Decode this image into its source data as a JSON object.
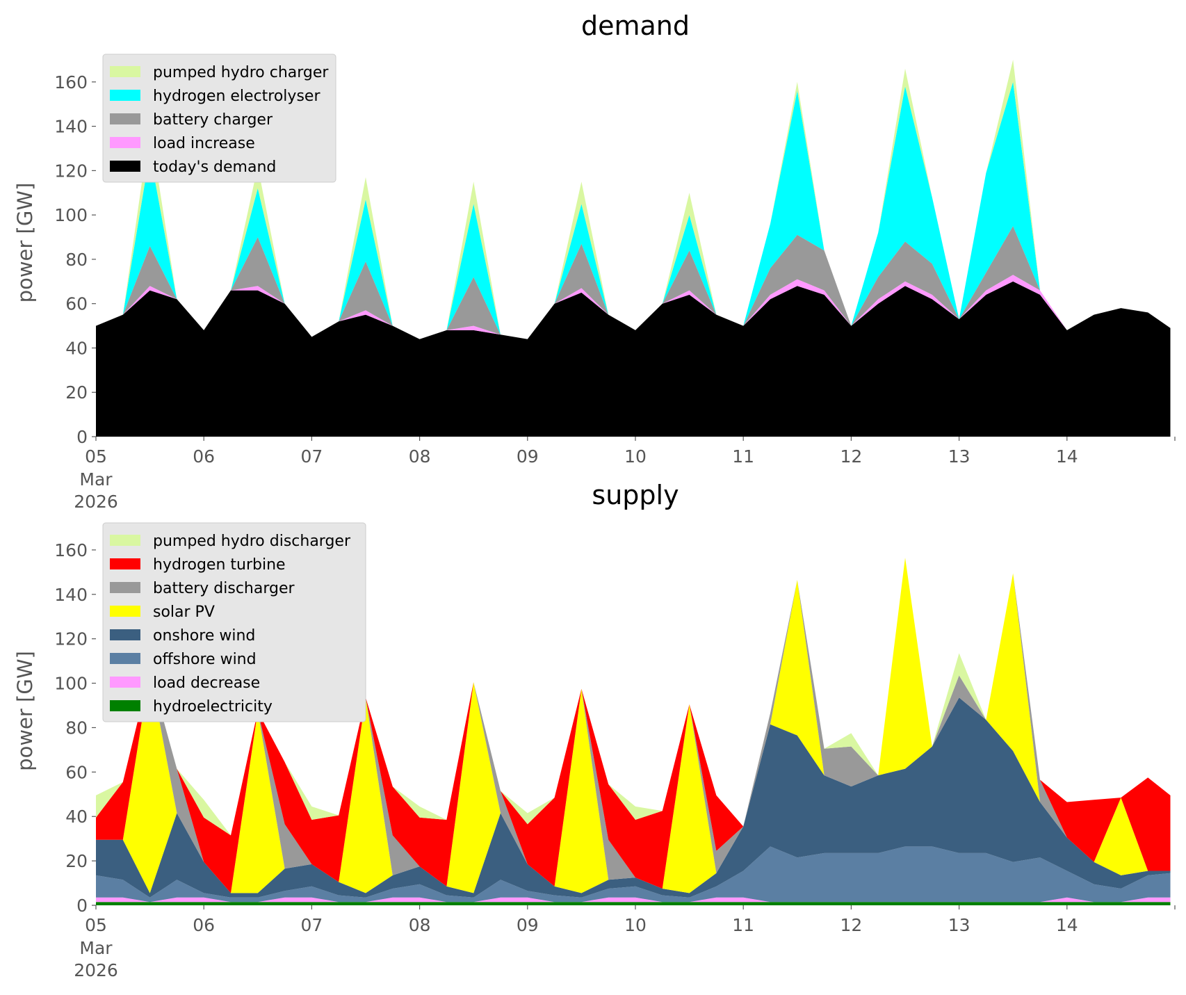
{
  "chart_data": [
    {
      "type": "area",
      "stacked": true,
      "title": "demand",
      "ylabel": "power [GW]",
      "xlabel": "",
      "ylim": [
        0,
        175
      ],
      "yticks": [
        0,
        20,
        40,
        60,
        80,
        100,
        120,
        140,
        160
      ],
      "grid": false,
      "legend_position": "top-left",
      "x_ticks": [
        {
          "label": "05",
          "sub": [
            "Mar",
            "2026"
          ]
        },
        {
          "label": "06"
        },
        {
          "label": "07"
        },
        {
          "label": "08"
        },
        {
          "label": "09"
        },
        {
          "label": "10"
        },
        {
          "label": "11"
        },
        {
          "label": "12"
        },
        {
          "label": "13"
        },
        {
          "label": "14"
        }
      ],
      "x": [
        "2026-03-05 00:00",
        "2026-03-05 06:00",
        "2026-03-05 12:00",
        "2026-03-05 18:00",
        "2026-03-06 00:00",
        "2026-03-06 06:00",
        "2026-03-06 12:00",
        "2026-03-06 18:00",
        "2026-03-07 00:00",
        "2026-03-07 06:00",
        "2026-03-07 12:00",
        "2026-03-07 18:00",
        "2026-03-08 00:00",
        "2026-03-08 06:00",
        "2026-03-08 12:00",
        "2026-03-08 18:00",
        "2026-03-09 00:00",
        "2026-03-09 06:00",
        "2026-03-09 12:00",
        "2026-03-09 18:00",
        "2026-03-10 00:00",
        "2026-03-10 06:00",
        "2026-03-10 12:00",
        "2026-03-10 18:00",
        "2026-03-11 00:00",
        "2026-03-11 06:00",
        "2026-03-11 12:00",
        "2026-03-11 18:00",
        "2026-03-12 00:00",
        "2026-03-12 06:00",
        "2026-03-12 12:00",
        "2026-03-12 18:00",
        "2026-03-13 00:00",
        "2026-03-13 06:00",
        "2026-03-13 12:00",
        "2026-03-13 18:00",
        "2026-03-14 00:00",
        "2026-03-14 06:00",
        "2026-03-14 12:00",
        "2026-03-14 18:00",
        "2026-03-14 23:00"
      ],
      "series": [
        {
          "name": "today's demand",
          "color": "#000000",
          "values": [
            50,
            55,
            66,
            62,
            48,
            66,
            66,
            60,
            45,
            52,
            55,
            50,
            44,
            48,
            48,
            46,
            44,
            60,
            65,
            55,
            48,
            60,
            64,
            55,
            50,
            62,
            68,
            64,
            50,
            60,
            68,
            62,
            53,
            64,
            70,
            64,
            48,
            55,
            58,
            56,
            49
          ]
        },
        {
          "name": "load increase",
          "color": "#ff99ff",
          "values": [
            0,
            0,
            2,
            0,
            0,
            0,
            2,
            0,
            0,
            0,
            2,
            0,
            0,
            0,
            2,
            0,
            0,
            0,
            2,
            0,
            0,
            0,
            2,
            0,
            0,
            2,
            3,
            2,
            0,
            2,
            2,
            2,
            0,
            2,
            3,
            2,
            0,
            0,
            0,
            0,
            0
          ]
        },
        {
          "name": "battery charger",
          "color": "#999999",
          "values": [
            0,
            0,
            18,
            0,
            0,
            0,
            22,
            0,
            0,
            0,
            22,
            0,
            0,
            0,
            22,
            0,
            0,
            0,
            20,
            0,
            0,
            0,
            18,
            0,
            0,
            12,
            20,
            18,
            0,
            10,
            18,
            14,
            0,
            8,
            22,
            0,
            0,
            0,
            0,
            0,
            0
          ]
        },
        {
          "name": "hydrogen electrolyser",
          "color": "#00ffff",
          "values": [
            0,
            0,
            42,
            0,
            0,
            0,
            22,
            0,
            0,
            0,
            28,
            0,
            0,
            0,
            33,
            0,
            0,
            0,
            18,
            0,
            0,
            0,
            16,
            0,
            0,
            20,
            65,
            0,
            0,
            20,
            70,
            30,
            0,
            45,
            65,
            0,
            0,
            0,
            0,
            0,
            0
          ]
        },
        {
          "name": "pumped hydro charger",
          "color": "#d9f7a1",
          "values": [
            0,
            0,
            12,
            0,
            0,
            0,
            10,
            0,
            0,
            0,
            10,
            0,
            0,
            0,
            10,
            0,
            0,
            0,
            10,
            0,
            0,
            0,
            10,
            0,
            0,
            0,
            4,
            0,
            0,
            0,
            8,
            0,
            0,
            0,
            10,
            0,
            0,
            0,
            0,
            0,
            0
          ]
        }
      ]
    },
    {
      "type": "area",
      "stacked": true,
      "title": "supply",
      "ylabel": "power [GW]",
      "xlabel": "",
      "ylim": [
        0,
        175
      ],
      "yticks": [
        0,
        20,
        40,
        60,
        80,
        100,
        120,
        140,
        160
      ],
      "grid": false,
      "legend_position": "top-left",
      "x_ticks": [
        {
          "label": "05",
          "sub": [
            "Mar",
            "2026"
          ]
        },
        {
          "label": "06"
        },
        {
          "label": "07"
        },
        {
          "label": "08"
        },
        {
          "label": "09"
        },
        {
          "label": "10"
        },
        {
          "label": "11"
        },
        {
          "label": "12"
        },
        {
          "label": "13"
        },
        {
          "label": "14"
        }
      ],
      "x": [
        "2026-03-05 00:00",
        "2026-03-05 06:00",
        "2026-03-05 12:00",
        "2026-03-05 18:00",
        "2026-03-06 00:00",
        "2026-03-06 06:00",
        "2026-03-06 12:00",
        "2026-03-06 18:00",
        "2026-03-07 00:00",
        "2026-03-07 06:00",
        "2026-03-07 12:00",
        "2026-03-07 18:00",
        "2026-03-08 00:00",
        "2026-03-08 06:00",
        "2026-03-08 12:00",
        "2026-03-08 18:00",
        "2026-03-09 00:00",
        "2026-03-09 06:00",
        "2026-03-09 12:00",
        "2026-03-09 18:00",
        "2026-03-10 00:00",
        "2026-03-10 06:00",
        "2026-03-10 12:00",
        "2026-03-10 18:00",
        "2026-03-11 00:00",
        "2026-03-11 06:00",
        "2026-03-11 12:00",
        "2026-03-11 18:00",
        "2026-03-12 00:00",
        "2026-03-12 06:00",
        "2026-03-12 12:00",
        "2026-03-12 18:00",
        "2026-03-13 00:00",
        "2026-03-13 06:00",
        "2026-03-13 12:00",
        "2026-03-13 18:00",
        "2026-03-14 00:00",
        "2026-03-14 06:00",
        "2026-03-14 12:00",
        "2026-03-14 18:00",
        "2026-03-14 23:00"
      ],
      "series": [
        {
          "name": "hydroelectricity",
          "color": "#008000",
          "values": [
            1.5,
            1.5,
            1.5,
            1.5,
            1.5,
            1.5,
            1.5,
            1.5,
            1.5,
            1.5,
            1.5,
            1.5,
            1.5,
            1.5,
            1.5,
            1.5,
            1.5,
            1.5,
            1.5,
            1.5,
            1.5,
            1.5,
            1.5,
            1.5,
            1.5,
            1.5,
            1.5,
            1.5,
            1.5,
            1.5,
            1.5,
            1.5,
            1.5,
            1.5,
            1.5,
            1.5,
            1.5,
            1.5,
            1.5,
            1.5,
            1.5
          ]
        },
        {
          "name": "load decrease",
          "color": "#ff99ff",
          "values": [
            2,
            2,
            0,
            2,
            2,
            0,
            0,
            2,
            2,
            0,
            0,
            2,
            2,
            0,
            0,
            2,
            2,
            0,
            0,
            2,
            2,
            0,
            0,
            2,
            2,
            0,
            0,
            0,
            0,
            0,
            0,
            0,
            0,
            0,
            0,
            0,
            2,
            0,
            0,
            2,
            2
          ]
        },
        {
          "name": "offshore wind",
          "color": "#5b7fa3",
          "values": [
            10,
            8,
            2,
            8,
            2,
            2,
            2,
            3,
            5,
            3,
            2,
            4,
            6,
            3,
            2,
            8,
            3,
            3,
            2,
            4,
            5,
            3,
            2,
            5,
            12,
            25,
            20,
            22,
            22,
            22,
            25,
            25,
            22,
            22,
            18,
            20,
            12,
            8,
            6,
            10,
            11
          ]
        },
        {
          "name": "onshore wind",
          "color": "#3b5f80",
          "values": [
            16,
            18,
            2,
            30,
            14,
            2,
            2,
            10,
            10,
            6,
            2,
            6,
            8,
            4,
            2,
            30,
            12,
            4,
            2,
            4,
            4,
            3,
            2,
            6,
            20,
            55,
            55,
            35,
            30,
            35,
            35,
            45,
            70,
            60,
            50,
            25,
            15,
            10,
            6,
            2,
            1
          ]
        },
        {
          "name": "solar PV",
          "color": "#ffff00",
          "values": [
            0,
            0,
            100,
            0,
            0,
            0,
            82,
            0,
            0,
            0,
            88,
            0,
            0,
            0,
            95,
            0,
            0,
            0,
            92,
            0,
            0,
            0,
            85,
            0,
            0,
            0,
            70,
            0,
            0,
            0,
            95,
            0,
            0,
            0,
            80,
            0,
            0,
            0,
            35,
            0,
            0
          ]
        },
        {
          "name": "battery discharger",
          "color": "#999999",
          "values": [
            0,
            0,
            0,
            20,
            0,
            0,
            0,
            20,
            0,
            0,
            0,
            18,
            0,
            0,
            0,
            10,
            0,
            0,
            0,
            18,
            0,
            0,
            0,
            10,
            0,
            5,
            0,
            12,
            18,
            0,
            0,
            0,
            10,
            0,
            0,
            10,
            0,
            0,
            0,
            0,
            0
          ]
        },
        {
          "name": "hydrogen turbine",
          "color": "#ff0000",
          "values": [
            10,
            26,
            0,
            0,
            20,
            26,
            0,
            28,
            20,
            30,
            0,
            22,
            22,
            30,
            0,
            0,
            18,
            40,
            0,
            25,
            26,
            35,
            0,
            25,
            0,
            0,
            0,
            0,
            0,
            0,
            0,
            0,
            0,
            0,
            0,
            0,
            16,
            28,
            0,
            42,
            34
          ]
        },
        {
          "name": "pumped hydro discharger",
          "color": "#d9f7a1",
          "values": [
            10,
            0,
            0,
            0,
            8,
            0,
            0,
            0,
            6,
            0,
            0,
            0,
            5,
            0,
            0,
            0,
            5,
            0,
            0,
            0,
            6,
            0,
            0,
            0,
            0,
            0,
            0,
            0,
            6,
            0,
            0,
            0,
            10,
            0,
            0,
            0,
            0,
            0,
            0,
            0,
            0
          ]
        }
      ]
    }
  ]
}
